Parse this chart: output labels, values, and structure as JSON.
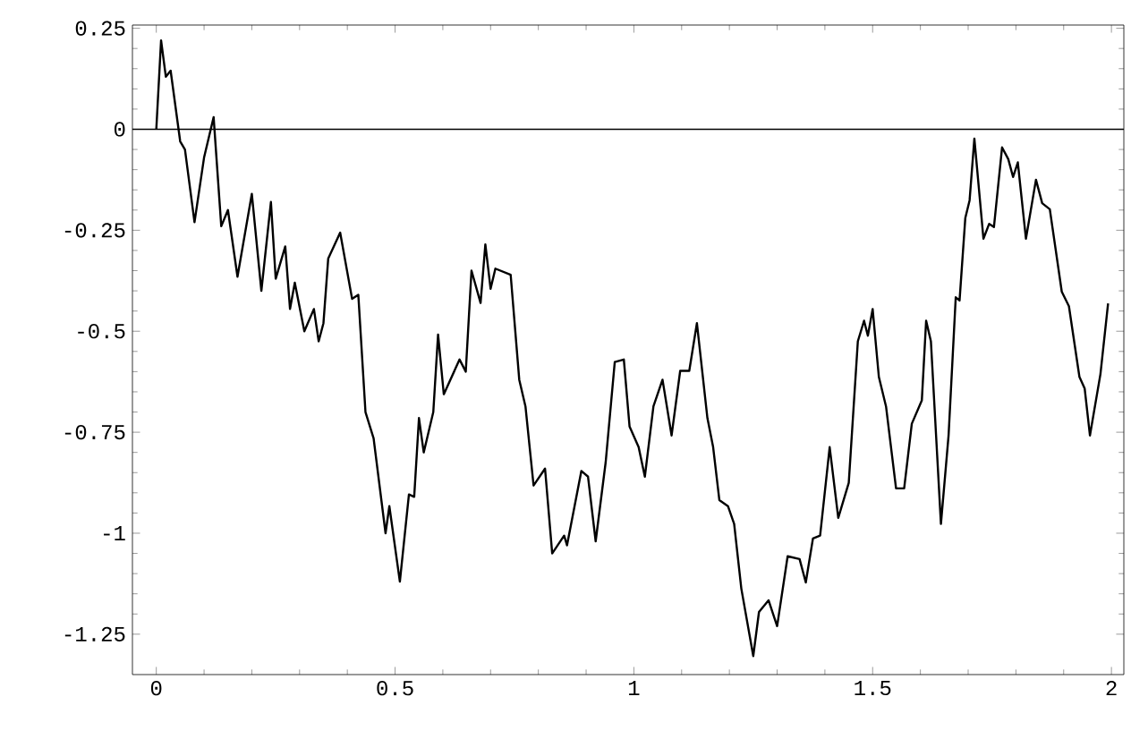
{
  "chart_data": {
    "type": "line",
    "color": "#000000",
    "x": [
      0,
      0.01,
      0.02,
      0.03,
      0.05,
      0.06,
      0.08,
      0.1,
      0.12,
      0.136,
      0.15,
      0.17,
      0.2,
      0.22,
      0.24,
      0.25,
      0.27,
      0.28,
      0.29,
      0.31,
      0.33,
      0.34,
      0.35,
      0.36,
      0.385,
      0.41,
      0.423,
      0.438,
      0.455,
      0.48,
      0.488,
      0.51,
      0.529,
      0.54,
      0.55,
      0.56,
      0.58,
      0.59,
      0.602,
      0.635,
      0.648,
      0.66,
      0.679,
      0.689,
      0.7,
      0.71,
      0.742,
      0.76,
      0.773,
      0.79,
      0.814,
      0.829,
      0.854,
      0.86,
      0.89,
      0.904,
      0.92,
      0.941,
      0.96,
      0.979,
      0.991,
      1.01,
      1.023,
      1.041,
      1.06,
      1.079,
      1.097,
      1.116,
      1.132,
      1.154,
      1.166,
      1.179,
      1.197,
      1.21,
      1.225,
      1.25,
      1.262,
      1.282,
      1.3,
      1.322,
      1.347,
      1.36,
      1.375,
      1.39,
      1.41,
      1.428,
      1.45,
      1.469,
      1.482,
      1.49,
      1.5,
      1.513,
      1.528,
      1.549,
      1.566,
      1.582,
      1.603,
      1.612,
      1.622,
      1.643,
      1.659,
      1.674,
      1.682,
      1.694,
      1.703,
      1.713,
      1.732,
      1.744,
      1.754,
      1.771,
      1.784,
      1.794,
      1.804,
      1.821,
      1.842,
      1.855,
      1.871,
      1.896,
      1.911,
      1.933,
      1.944,
      1.955,
      1.977,
      1.993
    ],
    "values": [
      0,
      0.22,
      0.13,
      0.145,
      -0.03,
      -0.05,
      -0.23,
      -0.07,
      0.03,
      -0.24,
      -0.2,
      -0.365,
      -0.16,
      -0.4,
      -0.18,
      -0.37,
      -0.29,
      -0.445,
      -0.38,
      -0.5,
      -0.445,
      -0.525,
      -0.48,
      -0.32,
      -0.256,
      -0.42,
      -0.41,
      -0.7,
      -0.765,
      -1.0,
      -0.933,
      -1.12,
      -0.904,
      -0.91,
      -0.715,
      -0.8,
      -0.7,
      -0.508,
      -0.656,
      -0.57,
      -0.6,
      -0.35,
      -0.43,
      -0.285,
      -0.395,
      -0.345,
      -0.36,
      -0.62,
      -0.686,
      -0.882,
      -0.84,
      -1.05,
      -1.006,
      -1.03,
      -0.846,
      -0.86,
      -1.02,
      -0.824,
      -0.576,
      -0.57,
      -0.736,
      -0.787,
      -0.86,
      -0.686,
      -0.62,
      -0.758,
      -0.598,
      -0.598,
      -0.48,
      -0.715,
      -0.787,
      -0.918,
      -0.933,
      -0.977,
      -1.137,
      -1.304,
      -1.195,
      -1.166,
      -1.23,
      -1.057,
      -1.064,
      -1.122,
      -1.013,
      -1.006,
      -0.787,
      -0.962,
      -0.875,
      -0.525,
      -0.474,
      -0.511,
      -0.445,
      -0.613,
      -0.686,
      -0.889,
      -0.889,
      -0.729,
      -0.671,
      -0.474,
      -0.525,
      -0.977,
      -0.758,
      -0.416,
      -0.424,
      -0.22,
      -0.176,
      -0.023,
      -0.271,
      -0.234,
      -0.242,
      -0.045,
      -0.074,
      -0.118,
      -0.082,
      -0.271,
      -0.125,
      -0.183,
      -0.198,
      -0.402,
      -0.438,
      -0.613,
      -0.642,
      -0.758,
      -0.606,
      -0.431
    ],
    "xlim": [
      -0.05,
      2.026
    ],
    "ylim": [
      -1.35,
      0.258
    ],
    "xticks": [
      0,
      0.5,
      1,
      1.5,
      2
    ],
    "yticks": [
      0.25,
      0,
      -0.25,
      -0.5,
      -0.75,
      -1,
      -1.25
    ],
    "ref_lines": [
      {
        "axis": "y",
        "value": 0,
        "color": "#000000"
      }
    ],
    "grid": false,
    "line_style": "solid",
    "marker": "none"
  }
}
